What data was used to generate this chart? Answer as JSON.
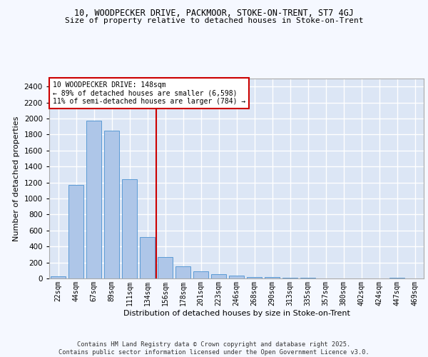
{
  "title_line1": "10, WOODPECKER DRIVE, PACKMOOR, STOKE-ON-TRENT, ST7 4GJ",
  "title_line2": "Size of property relative to detached houses in Stoke-on-Trent",
  "xlabel": "Distribution of detached houses by size in Stoke-on-Trent",
  "ylabel": "Number of detached properties",
  "categories": [
    "22sqm",
    "44sqm",
    "67sqm",
    "89sqm",
    "111sqm",
    "134sqm",
    "156sqm",
    "178sqm",
    "201sqm",
    "223sqm",
    "246sqm",
    "268sqm",
    "290sqm",
    "313sqm",
    "335sqm",
    "357sqm",
    "380sqm",
    "402sqm",
    "424sqm",
    "447sqm",
    "469sqm"
  ],
  "values": [
    28,
    1170,
    1970,
    1850,
    1240,
    515,
    270,
    155,
    90,
    50,
    40,
    20,
    15,
    5,
    5,
    2,
    2,
    1,
    1,
    10,
    1
  ],
  "bar_color": "#aec6e8",
  "bar_edge_color": "#5b9bd5",
  "background_color": "#dce6f5",
  "grid_color": "#ffffff",
  "fig_background": "#f5f8ff",
  "property_label": "10 WOODPECKER DRIVE: 148sqm",
  "pct_smaller": 89,
  "count_smaller": 6598,
  "pct_larger": 11,
  "count_larger": 784,
  "vline_x_index": 5.5,
  "annotation_box_color": "#ffffff",
  "annotation_box_edge": "#cc0000",
  "vline_color": "#cc0000",
  "ylim": [
    0,
    2500
  ],
  "yticks": [
    0,
    200,
    400,
    600,
    800,
    1000,
    1200,
    1400,
    1600,
    1800,
    2000,
    2200,
    2400
  ],
  "footer": "Contains HM Land Registry data © Crown copyright and database right 2025.\nContains public sector information licensed under the Open Government Licence v3.0.",
  "title_fontsize": 8.5,
  "subtitle_fontsize": 8.0
}
